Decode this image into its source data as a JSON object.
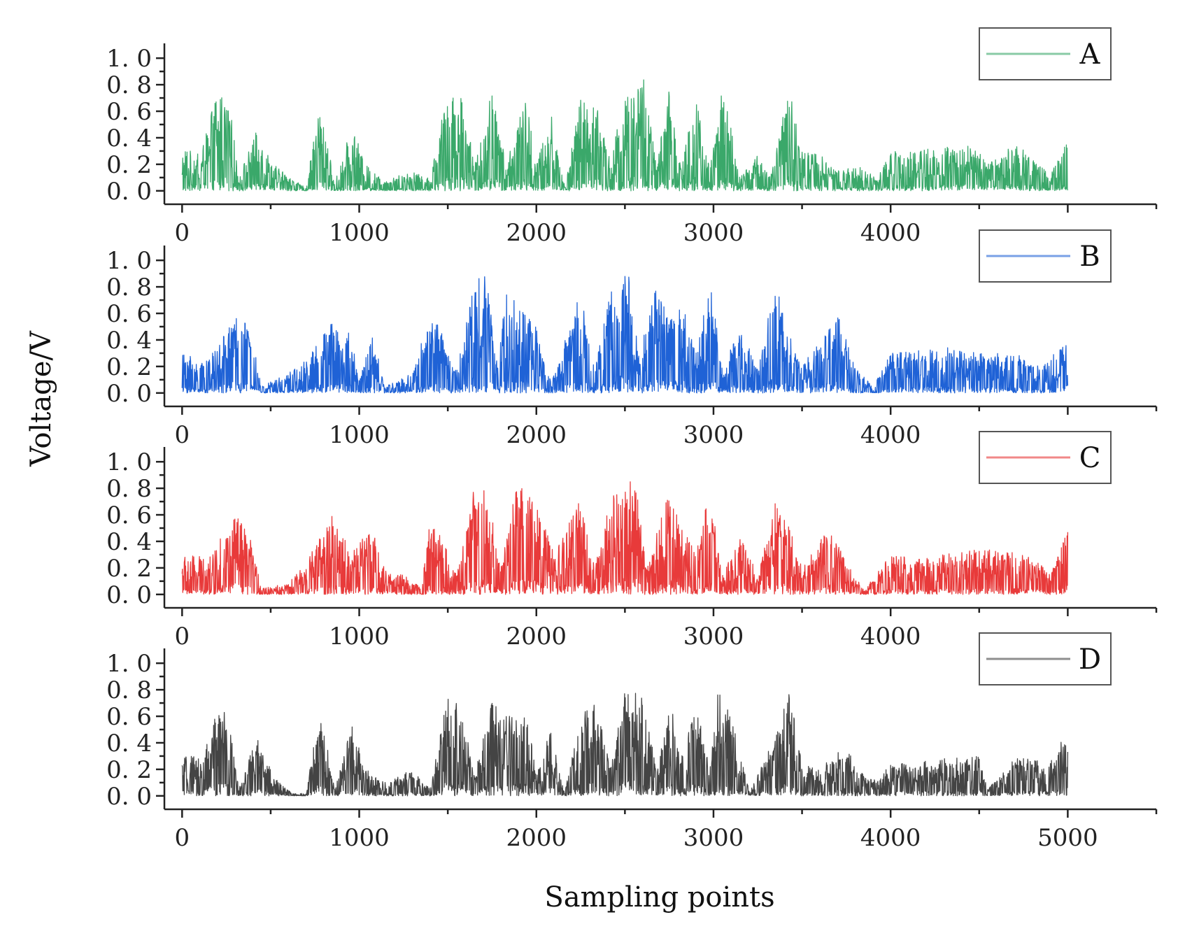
{
  "chart_data": {
    "type": "line",
    "xlabel": "Sampling points",
    "ylabel": "Voltage/V",
    "xlim": [
      -100,
      5500
    ],
    "ylim": [
      -0.08,
      1.08
    ],
    "x_ticks": [
      "0",
      "1000",
      "2000",
      "3000",
      "4000",
      "5000"
    ],
    "y_ticks": [
      "0. 0",
      "0. 2",
      "0. 4",
      "0. 6",
      "0. 8",
      "1. 0"
    ],
    "num_points": 5000,
    "grid": false,
    "legend_position": "top-right",
    "panels": [
      {
        "name": "A",
        "color": "#3aa86a",
        "x_tick_labels_shown": true,
        "approx_envelope": [
          [
            0,
            0.3
          ],
          [
            100,
            0.3
          ],
          [
            200,
            0.75
          ],
          [
            260,
            0.75
          ],
          [
            320,
            0.1
          ],
          [
            420,
            0.45
          ],
          [
            520,
            0.2
          ],
          [
            620,
            0.1
          ],
          [
            700,
            0.02
          ],
          [
            780,
            0.72
          ],
          [
            860,
            0.05
          ],
          [
            960,
            0.5
          ],
          [
            1040,
            0.2
          ],
          [
            1140,
            0.08
          ],
          [
            1300,
            0.15
          ],
          [
            1400,
            0.1
          ],
          [
            1500,
            0.78
          ],
          [
            1580,
            0.75
          ],
          [
            1650,
            0.2
          ],
          [
            1750,
            0.78
          ],
          [
            1830,
            0.2
          ],
          [
            1940,
            0.72
          ],
          [
            2000,
            0.2
          ],
          [
            2080,
            0.6
          ],
          [
            2160,
            0.03
          ],
          [
            2250,
            0.7
          ],
          [
            2340,
            0.65
          ],
          [
            2420,
            0.25
          ],
          [
            2500,
            0.75
          ],
          [
            2600,
            0.9
          ],
          [
            2680,
            0.2
          ],
          [
            2750,
            0.78
          ],
          [
            2820,
            0.2
          ],
          [
            2900,
            0.75
          ],
          [
            2980,
            0.15
          ],
          [
            3050,
            0.85
          ],
          [
            3150,
            0.1
          ],
          [
            3260,
            0.3
          ],
          [
            3320,
            0.1
          ],
          [
            3430,
            0.8
          ],
          [
            3500,
            0.3
          ],
          [
            3600,
            0.3
          ],
          [
            3700,
            0.15
          ],
          [
            3850,
            0.2
          ],
          [
            3920,
            0.08
          ],
          [
            4000,
            0.3
          ],
          [
            4500,
            0.35
          ],
          [
            4550,
            0.2
          ],
          [
            4700,
            0.35
          ],
          [
            4800,
            0.3
          ],
          [
            4900,
            0.12
          ],
          [
            5000,
            0.38
          ]
        ]
      },
      {
        "name": "B",
        "color": "#1f62d6",
        "x_tick_labels_shown": true,
        "approx_envelope": [
          [
            0,
            0.3
          ],
          [
            150,
            0.25
          ],
          [
            300,
            0.6
          ],
          [
            380,
            0.5
          ],
          [
            450,
            0.05
          ],
          [
            600,
            0.15
          ],
          [
            700,
            0.25
          ],
          [
            850,
            0.55
          ],
          [
            950,
            0.45
          ],
          [
            1000,
            0.1
          ],
          [
            1070,
            0.45
          ],
          [
            1150,
            0.05
          ],
          [
            1300,
            0.15
          ],
          [
            1400,
            0.6
          ],
          [
            1450,
            0.5
          ],
          [
            1550,
            0.2
          ],
          [
            1650,
            0.88
          ],
          [
            1720,
            0.9
          ],
          [
            1780,
            0.2
          ],
          [
            1830,
            0.78
          ],
          [
            1900,
            0.65
          ],
          [
            2000,
            0.5
          ],
          [
            2080,
            0.1
          ],
          [
            2250,
            0.78
          ],
          [
            2330,
            0.2
          ],
          [
            2430,
            0.85
          ],
          [
            2520,
            0.9
          ],
          [
            2580,
            0.3
          ],
          [
            2670,
            0.8
          ],
          [
            2740,
            0.6
          ],
          [
            2830,
            0.65
          ],
          [
            2900,
            0.3
          ],
          [
            2980,
            0.88
          ],
          [
            3050,
            0.2
          ],
          [
            3150,
            0.5
          ],
          [
            3250,
            0.2
          ],
          [
            3350,
            0.85
          ],
          [
            3400,
            0.55
          ],
          [
            3500,
            0.2
          ],
          [
            3600,
            0.4
          ],
          [
            3700,
            0.6
          ],
          [
            3800,
            0.2
          ],
          [
            3900,
            0.05
          ],
          [
            4000,
            0.3
          ],
          [
            4300,
            0.35
          ],
          [
            4500,
            0.3
          ],
          [
            4700,
            0.3
          ],
          [
            4850,
            0.2
          ],
          [
            5000,
            0.4
          ]
        ]
      },
      {
        "name": "C",
        "color": "#e83a3a",
        "x_tick_labels_shown": true,
        "approx_envelope": [
          [
            0,
            0.3
          ],
          [
            150,
            0.28
          ],
          [
            300,
            0.6
          ],
          [
            380,
            0.45
          ],
          [
            450,
            0.05
          ],
          [
            600,
            0.08
          ],
          [
            700,
            0.25
          ],
          [
            850,
            0.6
          ],
          [
            950,
            0.35
          ],
          [
            1070,
            0.5
          ],
          [
            1150,
            0.2
          ],
          [
            1250,
            0.15
          ],
          [
            1350,
            0.05
          ],
          [
            1400,
            0.6
          ],
          [
            1450,
            0.5
          ],
          [
            1550,
            0.15
          ],
          [
            1650,
            0.85
          ],
          [
            1720,
            0.8
          ],
          [
            1800,
            0.2
          ],
          [
            1890,
            0.85
          ],
          [
            2000,
            0.7
          ],
          [
            2100,
            0.3
          ],
          [
            2250,
            0.72
          ],
          [
            2330,
            0.2
          ],
          [
            2430,
            0.8
          ],
          [
            2560,
            0.9
          ],
          [
            2620,
            0.2
          ],
          [
            2730,
            0.75
          ],
          [
            2830,
            0.6
          ],
          [
            2900,
            0.3
          ],
          [
            2980,
            0.8
          ],
          [
            3050,
            0.15
          ],
          [
            3150,
            0.45
          ],
          [
            3250,
            0.15
          ],
          [
            3350,
            0.7
          ],
          [
            3420,
            0.55
          ],
          [
            3500,
            0.2
          ],
          [
            3650,
            0.5
          ],
          [
            3750,
            0.25
          ],
          [
            3850,
            0.03
          ],
          [
            4000,
            0.3
          ],
          [
            4300,
            0.3
          ],
          [
            4500,
            0.35
          ],
          [
            4800,
            0.3
          ],
          [
            4900,
            0.15
          ],
          [
            5000,
            0.5
          ]
        ]
      },
      {
        "name": "D",
        "color": "#444444",
        "x_tick_labels_shown": true,
        "approx_envelope": [
          [
            0,
            0.3
          ],
          [
            120,
            0.3
          ],
          [
            200,
            0.7
          ],
          [
            260,
            0.65
          ],
          [
            320,
            0.05
          ],
          [
            420,
            0.45
          ],
          [
            520,
            0.15
          ],
          [
            620,
            0.02
          ],
          [
            700,
            0.02
          ],
          [
            780,
            0.68
          ],
          [
            860,
            0.05
          ],
          [
            960,
            0.55
          ],
          [
            1040,
            0.2
          ],
          [
            1140,
            0.1
          ],
          [
            1300,
            0.2
          ],
          [
            1400,
            0.05
          ],
          [
            1500,
            0.78
          ],
          [
            1580,
            0.7
          ],
          [
            1650,
            0.15
          ],
          [
            1750,
            0.72
          ],
          [
            1850,
            0.6
          ],
          [
            1950,
            0.6
          ],
          [
            2000,
            0.15
          ],
          [
            2080,
            0.5
          ],
          [
            2160,
            0.03
          ],
          [
            2280,
            0.8
          ],
          [
            2340,
            0.7
          ],
          [
            2420,
            0.2
          ],
          [
            2500,
            0.82
          ],
          [
            2600,
            0.75
          ],
          [
            2680,
            0.2
          ],
          [
            2750,
            0.75
          ],
          [
            2820,
            0.3
          ],
          [
            2900,
            0.72
          ],
          [
            2980,
            0.2
          ],
          [
            3030,
            0.85
          ],
          [
            3100,
            0.6
          ],
          [
            3200,
            0.05
          ],
          [
            3300,
            0.3
          ],
          [
            3430,
            0.78
          ],
          [
            3500,
            0.25
          ],
          [
            3600,
            0.2
          ],
          [
            3750,
            0.4
          ],
          [
            3850,
            0.15
          ],
          [
            3950,
            0.15
          ],
          [
            4000,
            0.25
          ],
          [
            4500,
            0.3
          ],
          [
            4550,
            0.05
          ],
          [
            4700,
            0.3
          ],
          [
            4900,
            0.25
          ],
          [
            5000,
            0.55
          ]
        ]
      }
    ]
  }
}
